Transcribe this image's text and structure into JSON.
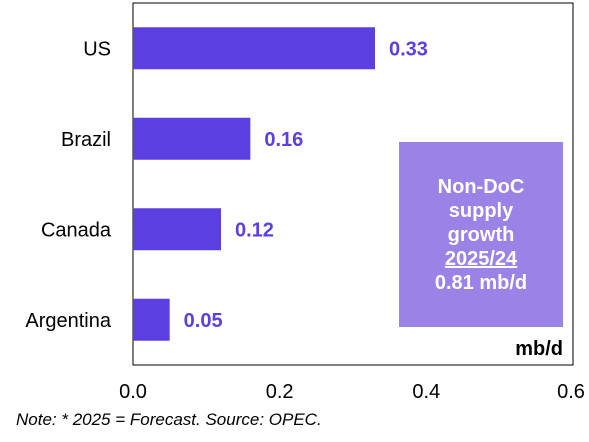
{
  "colors": {
    "bar": "#5b3fe0",
    "value_label": "#5b3fe0",
    "callout_bg": "#9b82e6",
    "callout_text": "#ffffff",
    "axis": "#000000"
  },
  "chart_data": {
    "type": "bar",
    "orientation": "horizontal",
    "categories": [
      "US",
      "Brazil",
      "Canada",
      "Argentina"
    ],
    "values": [
      0.33,
      0.16,
      0.12,
      0.05
    ],
    "value_labels": [
      "0.33",
      "0.16",
      "0.12",
      "0.05"
    ],
    "xlim": [
      0.0,
      0.6
    ],
    "xticks": [
      0.0,
      0.2,
      0.4,
      0.6
    ],
    "xtick_labels": [
      "0.0",
      "0.2",
      "0.4",
      "0.6"
    ],
    "unit_label": "mb/d",
    "title": "",
    "xlabel": "",
    "ylabel": "",
    "grid": false,
    "legend": "none"
  },
  "callout": {
    "line1": "Non-DoC",
    "line2": "supply",
    "line3": "growth",
    "line4": "2025/24",
    "line5": "0.81 mb/d"
  },
  "note": "Note: * 2025 = Forecast. Source: OPEC."
}
